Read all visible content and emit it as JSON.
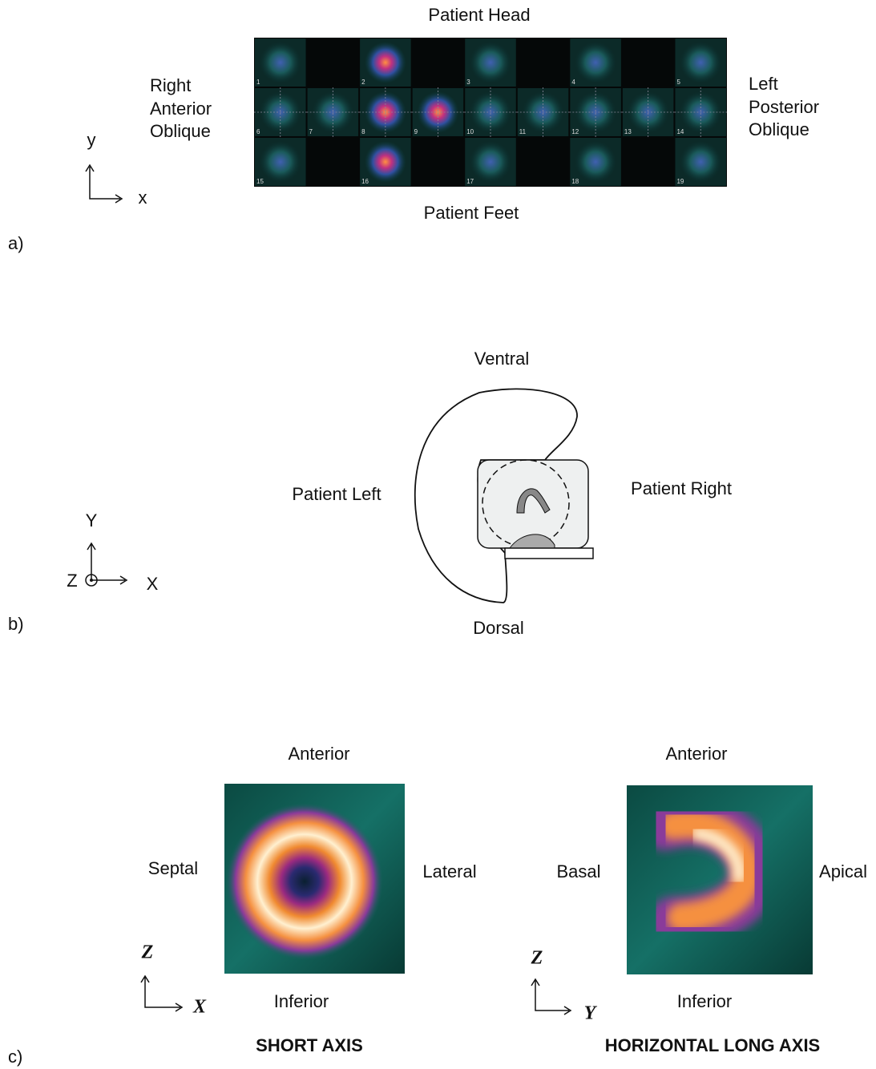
{
  "panel_a": {
    "label": "a)",
    "top": "Patient Head",
    "bottom": "Patient Feet",
    "left": [
      "Right",
      "Anterior",
      "Oblique"
    ],
    "right": [
      "Left",
      "Posterior",
      "Oblique"
    ],
    "axis_y": "y",
    "axis_x": "x",
    "tiles": [
      "1",
      "2",
      "3",
      "4",
      "5",
      "6",
      "7",
      "8",
      "9",
      "10",
      "11",
      "12",
      "13",
      "14",
      "15",
      "16",
      "17",
      "18",
      "19"
    ]
  },
  "panel_b": {
    "label": "b)",
    "top": "Ventral",
    "bottom": "Dorsal",
    "left": "Patient Left",
    "right": "Patient Right",
    "axis_y": "Y",
    "axis_z": "Z",
    "axis_x": "X"
  },
  "panel_c": {
    "label": "c)",
    "views": [
      {
        "title": "SHORT AXIS",
        "top": "Anterior",
        "bottom": "Inferior",
        "left": "Septal",
        "right": "Lateral",
        "axis_vertical": "Z",
        "axis_horizontal": "X"
      },
      {
        "title": "HORIZONTAL LONG AXIS",
        "top": "Anterior",
        "bottom": "Inferior",
        "left": "Basal",
        "right": "Apical",
        "axis_vertical": "Z",
        "axis_horizontal": "Y"
      }
    ]
  }
}
